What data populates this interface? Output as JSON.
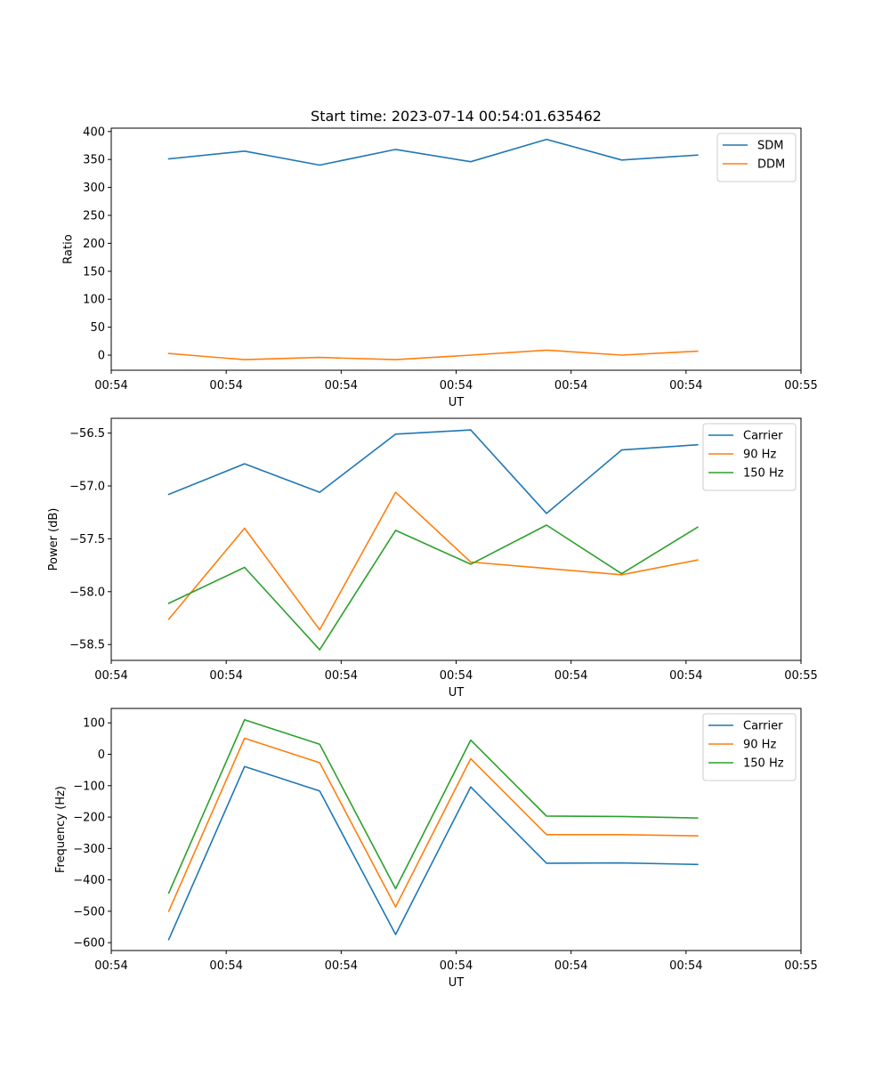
{
  "figure": {
    "title": "Start time: 2023-07-14 00:54:01.635462"
  },
  "colors": {
    "blue": "#1f77b4",
    "orange": "#ff7f0e",
    "green": "#2ca02c",
    "axis": "#000000",
    "legend_border": "#cccccc"
  },
  "chart_data": [
    {
      "type": "line",
      "xlabel": "UT",
      "ylabel": "Ratio",
      "xlim": [
        0,
        9
      ],
      "ylim": [
        -27,
        406
      ],
      "yticks": [
        0,
        50,
        100,
        150,
        200,
        250,
        300,
        350,
        400
      ],
      "ytick_labels": [
        "0",
        "50",
        "100",
        "150",
        "200",
        "250",
        "300",
        "350",
        "400"
      ],
      "xticks": [
        0,
        1.5,
        3,
        4.5,
        6,
        7.5,
        9
      ],
      "xtick_labels": [
        "00:54",
        "00:54",
        "00:54",
        "00:54",
        "00:54",
        "00:54",
        "00:55"
      ],
      "legend_position": "upper right",
      "x": [
        0.75,
        1.74,
        2.72,
        3.71,
        4.69,
        5.68,
        6.66,
        7.65
      ],
      "series": [
        {
          "name": "SDM",
          "color_key": "blue",
          "values": [
            351,
            365,
            340,
            368,
            346,
            386,
            349,
            358
          ]
        },
        {
          "name": "DDM",
          "color_key": "orange",
          "values": [
            3,
            -8,
            -4,
            -8,
            0,
            9,
            0,
            7
          ]
        }
      ]
    },
    {
      "type": "line",
      "xlabel": "UT",
      "ylabel": "Power (dB)",
      "xlim": [
        0,
        9
      ],
      "ylim": [
        -58.65,
        -56.36
      ],
      "yticks": [
        -58.5,
        -58.0,
        -57.5,
        -57.0,
        -56.5
      ],
      "ytick_labels": [
        "−58.5",
        "−58.0",
        "−57.5",
        "−57.0",
        "−56.5"
      ],
      "xticks": [
        0,
        1.5,
        3,
        4.5,
        6,
        7.5,
        9
      ],
      "xtick_labels": [
        "00:54",
        "00:54",
        "00:54",
        "00:54",
        "00:54",
        "00:54",
        "00:55"
      ],
      "legend_position": "upper right",
      "x": [
        0.75,
        1.74,
        2.72,
        3.71,
        4.69,
        5.68,
        6.66,
        7.65
      ],
      "series": [
        {
          "name": "Carrier",
          "color_key": "blue",
          "values": [
            -57.08,
            -56.79,
            -57.06,
            -56.51,
            -56.47,
            -57.26,
            -56.66,
            -56.61
          ]
        },
        {
          "name": "90 Hz",
          "color_key": "orange",
          "values": [
            -58.26,
            -57.4,
            -58.36,
            -57.06,
            -57.72,
            -57.78,
            -57.84,
            -57.7
          ]
        },
        {
          "name": "150 Hz",
          "color_key": "green",
          "values": [
            -58.11,
            -57.77,
            -58.55,
            -57.42,
            -57.74,
            -57.37,
            -57.83,
            -57.39
          ]
        }
      ]
    },
    {
      "type": "line",
      "xlabel": "UT",
      "ylabel": "Frequency (Hz)",
      "xlim": [
        0,
        9
      ],
      "ylim": [
        -625,
        146
      ],
      "yticks": [
        -600,
        -500,
        -400,
        -300,
        -200,
        -100,
        0,
        100
      ],
      "ytick_labels": [
        "−600",
        "−500",
        "−400",
        "−300",
        "−200",
        "−100",
        "0",
        "100"
      ],
      "xticks": [
        0,
        1.5,
        3,
        4.5,
        6,
        7.5,
        9
      ],
      "xtick_labels": [
        "00:54",
        "00:54",
        "00:54",
        "00:54",
        "00:54",
        "00:54",
        "00:55"
      ],
      "legend_position": "upper right",
      "x": [
        0.75,
        1.74,
        2.72,
        3.71,
        4.69,
        5.68,
        6.66,
        7.65
      ],
      "series": [
        {
          "name": "Carrier",
          "color_key": "blue",
          "values": [
            -590,
            -39,
            -117,
            -574,
            -104,
            -347,
            -346,
            -351
          ]
        },
        {
          "name": "90 Hz",
          "color_key": "orange",
          "values": [
            -500,
            51,
            -27,
            -486,
            -14,
            -256,
            -256,
            -260
          ]
        },
        {
          "name": "150 Hz",
          "color_key": "green",
          "values": [
            -442,
            110,
            32,
            -428,
            45,
            -197,
            -198,
            -203
          ]
        }
      ]
    }
  ]
}
